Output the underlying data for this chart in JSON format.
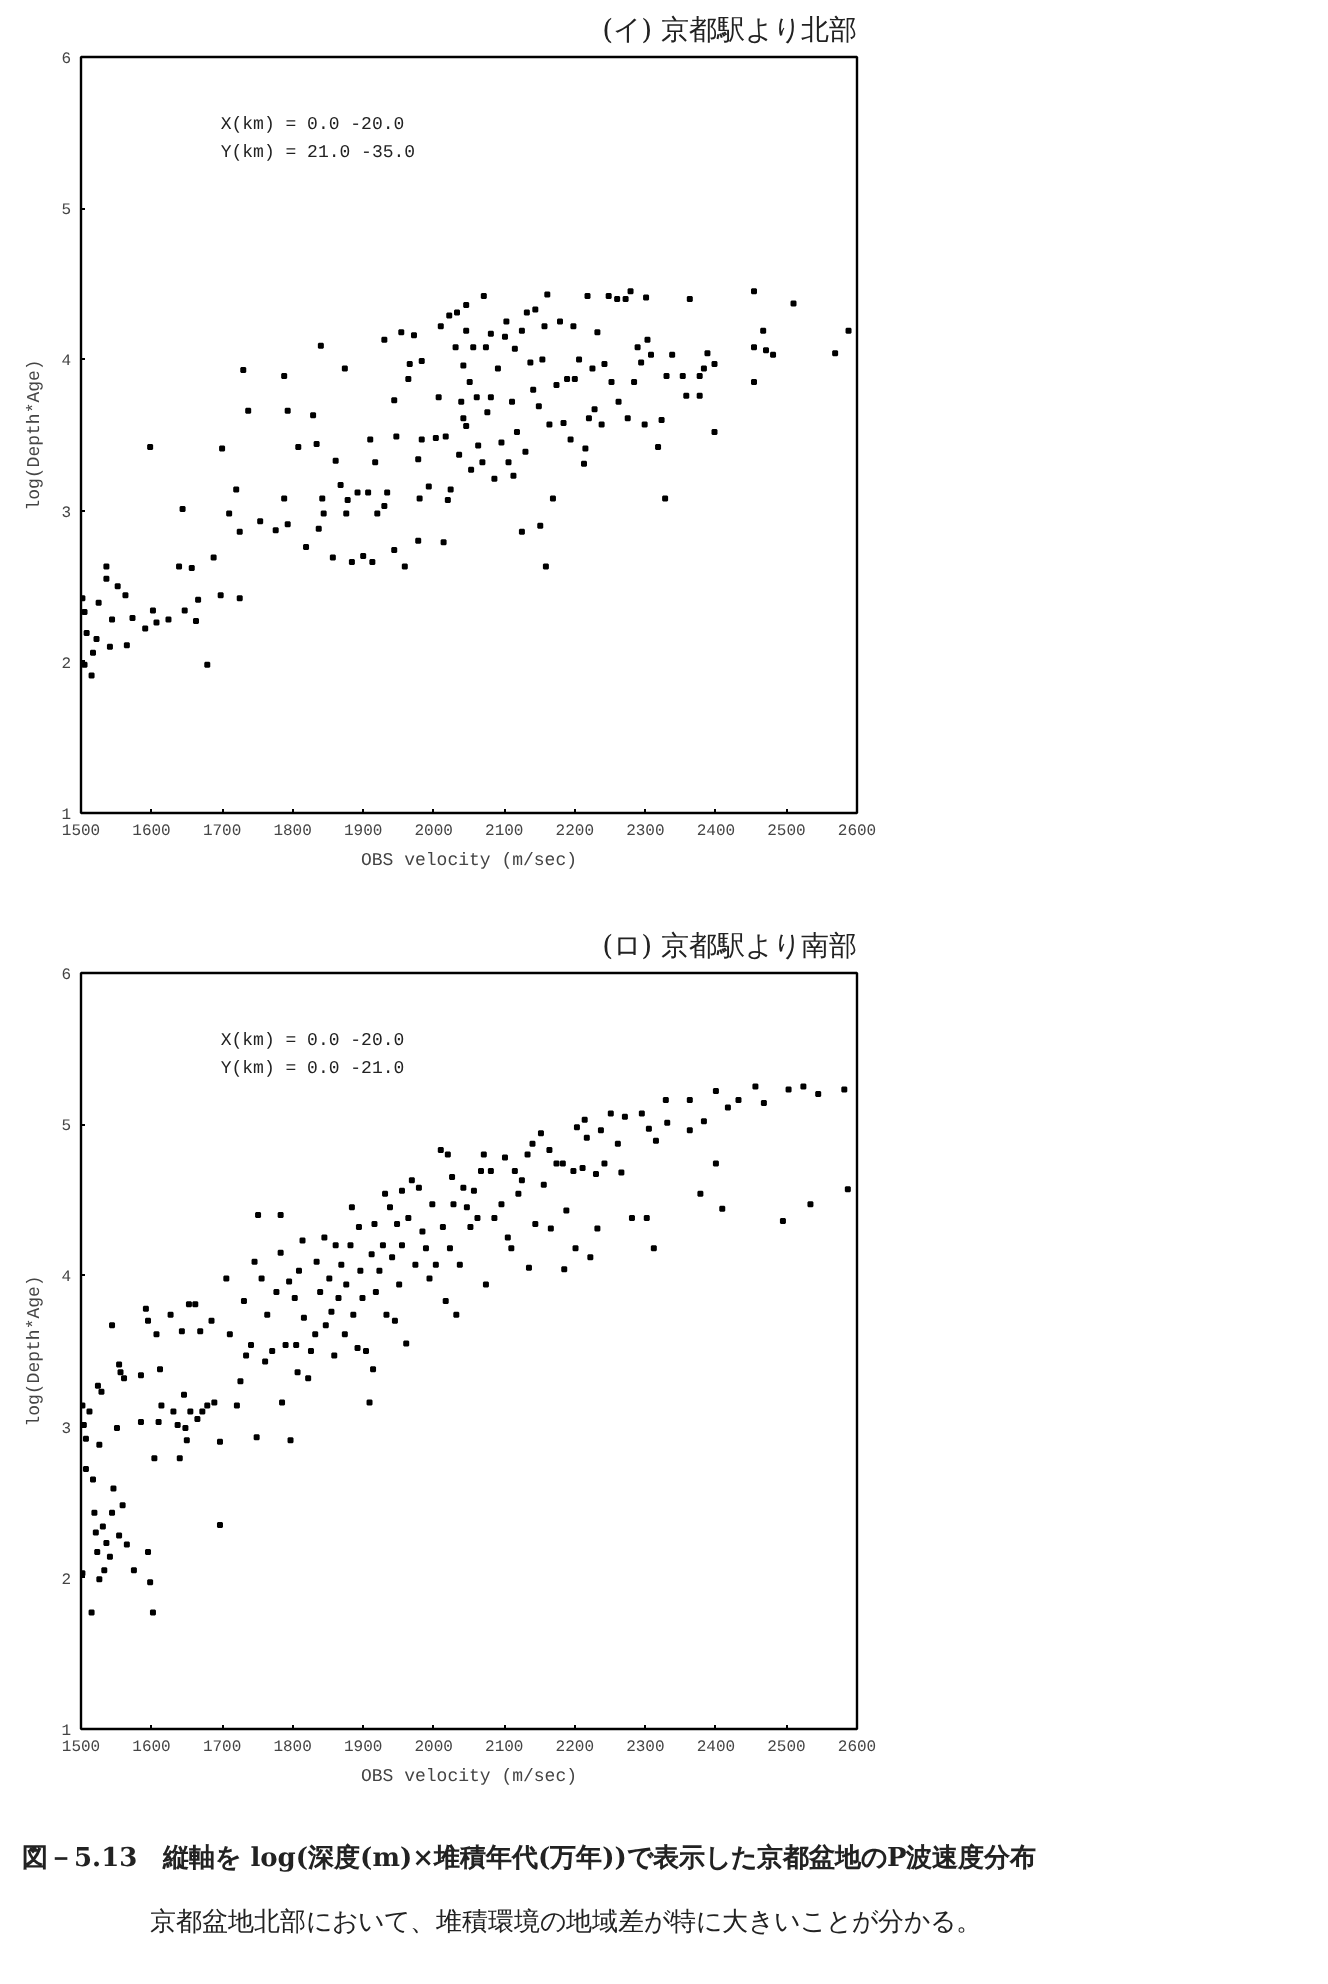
{
  "chart_data": [
    {
      "type": "scatter",
      "subtitle": "(イ) 京都駅より北部",
      "xlabel": "OBS velocity (m/sec)",
      "ylabel": "log(Depth*Age)",
      "annotations": [
        "X(km) = 0.0   -20.0",
        "Y(km) = 21.0  -35.0"
      ],
      "xlim": [
        1500,
        2600
      ],
      "ylim": [
        1,
        6
      ],
      "xticks": [
        1500,
        1600,
        1700,
        1800,
        1900,
        2000,
        2100,
        2200,
        2300,
        2400,
        2500,
        2600
      ],
      "yticks": [
        1,
        2,
        3,
        4,
        5,
        6
      ],
      "marker": "square",
      "color": "#000000",
      "x": [
        1502,
        1505,
        1508,
        1505,
        1515,
        1517,
        1522,
        1525,
        1536,
        1536,
        1541,
        1544,
        1552,
        1563,
        1565,
        1573,
        1591,
        1602,
        1607,
        1624,
        1639,
        1647,
        1644,
        1598,
        1657,
        1666,
        1663,
        1679,
        1688,
        1698,
        1700,
        1710,
        1720,
        1725,
        1725,
        1730,
        1737,
        1754,
        1776,
        1788,
        1788,
        1793,
        1793,
        1808,
        1819,
        1829,
        1834,
        1837,
        1840,
        1842,
        1844,
        1857,
        1861,
        1868,
        1874,
        1876,
        1878,
        1884,
        1892,
        1900,
        1907,
        1910,
        1913,
        1917,
        1920,
        1930,
        1930,
        1934,
        1944,
        1944,
        1947,
        1954,
        1959,
        1964,
        1966,
        1972,
        1978,
        1978,
        1980,
        1983,
        1983,
        1993,
        2003,
        2010,
        2007,
        2014,
        2017,
        2020,
        2022,
        2024,
        2031,
        2033,
        2036,
        2039,
        2042,
        2042,
        2046,
        2046,
        2046,
        2051,
        2053,
        2056,
        2061,
        2063,
        2069,
        2071,
        2074,
        2076,
        2081,
        2081,
        2086,
        2091,
        2096,
        2101,
        2103,
        2106,
        2111,
        2113,
        2115,
        2118,
        2125,
        2125,
        2130,
        2132,
        2137,
        2141,
        2144,
        2149,
        2151,
        2154,
        2157,
        2159,
        2161,
        2164,
        2169,
        2174,
        2179,
        2184,
        2189,
        2194,
        2198,
        2200,
        2206,
        2213,
        2215,
        2218,
        2220,
        2225,
        2228,
        2232,
        2238,
        2242,
        2248,
        2252,
        2260,
        2262,
        2272,
        2275,
        2279,
        2284,
        2289,
        2294,
        2299,
        2301,
        2303,
        2308,
        2318,
        2323,
        2328,
        2330,
        2338,
        2353,
        2358,
        2363,
        2377,
        2377,
        2383,
        2388,
        2398,
        2398,
        2454,
        2454,
        2454,
        2467,
        2471,
        2481,
        2510,
        2569,
        2588
      ],
      "values": [
        2.42,
        2.33,
        2.19,
        1.98,
        1.91,
        2.06,
        2.15,
        2.39,
        2.63,
        2.55,
        2.1,
        2.28,
        2.5,
        2.44,
        2.11,
        2.29,
        2.22,
        2.34,
        2.26,
        2.28,
        2.63,
        2.34,
        3.01,
        3.42,
        2.62,
        2.41,
        2.27,
        1.98,
        2.69,
        2.44,
        3.41,
        2.98,
        3.14,
        2.86,
        2.42,
        3.93,
        3.66,
        2.93,
        2.87,
        3.08,
        3.89,
        3.66,
        2.91,
        3.42,
        2.76,
        3.63,
        3.44,
        2.88,
        4.09,
        3.08,
        2.98,
        2.69,
        3.33,
        3.17,
        3.94,
        2.98,
        3.07,
        2.66,
        3.12,
        2.7,
        3.12,
        3.47,
        2.66,
        3.32,
        2.98,
        4.13,
        3.03,
        3.12,
        3.73,
        2.74,
        3.49,
        4.18,
        2.63,
        3.87,
        3.97,
        4.16,
        3.34,
        2.8,
        3.08,
        3.99,
        3.47,
        3.16,
        3.48,
        4.22,
        3.75,
        2.79,
        3.49,
        3.07,
        4.29,
        3.14,
        4.08,
        4.31,
        3.37,
        3.72,
        3.96,
        3.61,
        4.36,
        4.19,
        3.56,
        3.85,
        3.27,
        4.08,
        3.75,
        3.43,
        3.32,
        4.42,
        4.08,
        3.65,
        4.17,
        3.75,
        3.21,
        3.94,
        3.45,
        4.15,
        4.25,
        3.32,
        3.72,
        3.23,
        4.07,
        3.52,
        4.19,
        2.86,
        3.39,
        4.31,
        3.98,
        3.8,
        4.33,
        3.69,
        2.9,
        4.0,
        4.22,
        2.63,
        4.43,
        3.57,
        3.08,
        3.83,
        4.25,
        3.58,
        3.87,
        3.47,
        4.22,
        3.87,
        4.0,
        3.31,
        3.41,
        4.42,
        3.61,
        3.94,
        3.67,
        4.18,
        3.57,
        3.97,
        4.42,
        3.85,
        4.4,
        3.72,
        4.4,
        3.61,
        4.45,
        3.85,
        4.08,
        3.98,
        3.57,
        4.41,
        4.13,
        4.03,
        3.42,
        3.6,
        3.08,
        3.89,
        4.03,
        3.89,
        3.76,
        4.4,
        3.76,
        3.89,
        3.94,
        4.04,
        3.52,
        3.97,
        4.45,
        4.08,
        3.85,
        4.19,
        4.06,
        4.03,
        4.37,
        4.04,
        4.19
      ]
    },
    {
      "type": "scatter",
      "title": "図－5.13　縦軸を log(深度(m)×堆積年代(万年))で表示した京都盆地のP波速度分布",
      "subtitle": "(ロ) 京都駅より南部",
      "xlabel": "OBS velocity (m/sec)",
      "ylabel": "log(Depth*Age)",
      "annotations": [
        "X(km) = 0.0   -20.0",
        "Y(km) = 0.0   -21.0",
        "京都盆地北部において、堆積環境の地域差が特に大きいことが分かる。"
      ],
      "xlim": [
        1500,
        2600
      ],
      "ylim": [
        1,
        6
      ],
      "xticks": [
        1500,
        1600,
        1700,
        1800,
        1900,
        2000,
        2100,
        2200,
        2300,
        2400,
        2500,
        2600
      ],
      "yticks": [
        1,
        2,
        3,
        4,
        5,
        6
      ],
      "marker": "square",
      "color": "#000000",
      "x": [
        1502,
        1504,
        1507,
        1512,
        1507,
        1502,
        1517,
        1519,
        1521,
        1523,
        1526,
        1515,
        1524,
        1529,
        1526,
        1531,
        1536,
        1533,
        1541,
        1544,
        1546,
        1544,
        1551,
        1554,
        1556,
        1554,
        1559,
        1561,
        1565,
        1575,
        1585,
        1585,
        1592,
        1595,
        1595,
        1598,
        1602,
        1604,
        1607,
        1610,
        1612,
        1614,
        1627,
        1631,
        1637,
        1640,
        1643,
        1646,
        1648,
        1650,
        1653,
        1655,
        1662,
        1665,
        1669,
        1672,
        1679,
        1685,
        1689,
        1697,
        1697,
        1706,
        1711,
        1721,
        1726,
        1731,
        1734,
        1741,
        1746,
        1749,
        1751,
        1756,
        1761,
        1764,
        1771,
        1777,
        1783,
        1783,
        1785,
        1790,
        1795,
        1797,
        1803,
        1805,
        1807,
        1809,
        1814,
        1816,
        1822,
        1826,
        1832,
        1834,
        1839,
        1845,
        1847,
        1852,
        1855,
        1859,
        1861,
        1865,
        1869,
        1874,
        1876,
        1882,
        1884,
        1886,
        1892,
        1894,
        1896,
        1899,
        1904,
        1909,
        1912,
        1914,
        1916,
        1918,
        1923,
        1928,
        1931,
        1933,
        1938,
        1941,
        1945,
        1948,
        1951,
        1955,
        1955,
        1961,
        1964,
        1969,
        1974,
        1979,
        1984,
        1989,
        1994,
        1998,
        2003,
        2010,
        2013,
        2017,
        2020,
        2023,
        2026,
        2028,
        2032,
        2037,
        2042,
        2047,
        2052,
        2057,
        2062,
        2067,
        2071,
        2074,
        2081,
        2086,
        2096,
        2101,
        2105,
        2110,
        2115,
        2120,
        2125,
        2133,
        2135,
        2140,
        2144,
        2152,
        2156,
        2164,
        2166,
        2174,
        2183,
        2185,
        2188,
        2198,
        2201,
        2203,
        2211,
        2214,
        2217,
        2222,
        2230,
        2232,
        2237,
        2242,
        2251,
        2261,
        2266,
        2271,
        2281,
        2295,
        2302,
        2305,
        2312,
        2315,
        2329,
        2331,
        2363,
        2363,
        2378,
        2383,
        2400,
        2400,
        2409,
        2417,
        2432,
        2456,
        2468,
        2495,
        2503,
        2524,
        2534,
        2545,
        2582,
        2587
      ],
      "values": [
        3.14,
        3.01,
        2.92,
        3.1,
        2.72,
        2.03,
        2.65,
        2.43,
        2.3,
        2.17,
        1.99,
        1.77,
        3.27,
        3.23,
        2.88,
        2.34,
        2.23,
        2.05,
        2.14,
        3.67,
        2.59,
        2.43,
        2.99,
        3.41,
        3.36,
        2.28,
        2.48,
        3.32,
        2.22,
        2.05,
        3.34,
        3.03,
        3.78,
        3.7,
        2.17,
        1.97,
        1.77,
        2.79,
        3.61,
        3.03,
        3.38,
        3.14,
        3.74,
        3.1,
        3.01,
        2.79,
        3.63,
        3.21,
        2.99,
        2.91,
        3.81,
        3.1,
        3.81,
        3.05,
        3.63,
        3.1,
        3.14,
        3.7,
        3.16,
        2.9,
        2.35,
        3.98,
        3.61,
        3.14,
        3.3,
        3.83,
        3.47,
        3.54,
        4.09,
        2.93,
        4.4,
        3.98,
        3.43,
        3.74,
        3.5,
        3.89,
        4.4,
        4.15,
        3.16,
        3.54,
        3.96,
        2.91,
        3.85,
        3.54,
        3.36,
        4.03,
        4.23,
        3.72,
        3.32,
        3.5,
        3.61,
        4.09,
        3.89,
        4.25,
        3.67,
        3.98,
        3.76,
        3.47,
        4.2,
        3.85,
        4.07,
        3.61,
        3.94,
        4.2,
        4.45,
        3.74,
        3.52,
        4.32,
        4.03,
        3.85,
        3.5,
        3.16,
        4.14,
        3.38,
        4.34,
        3.89,
        4.03,
        4.2,
        4.54,
        3.74,
        4.45,
        4.12,
        3.7,
        4.34,
        3.94,
        4.2,
        4.56,
        3.55,
        4.38,
        4.63,
        4.07,
        4.58,
        4.29,
        4.18,
        3.98,
        4.47,
        4.07,
        4.83,
        4.32,
        3.83,
        4.8,
        4.18,
        4.65,
        4.47,
        3.74,
        4.07,
        4.58,
        4.45,
        4.32,
        4.56,
        4.38,
        4.69,
        4.8,
        3.94,
        4.69,
        4.38,
        4.47,
        4.78,
        4.25,
        4.18,
        4.69,
        4.54,
        4.63,
        4.8,
        4.05,
        4.87,
        4.34,
        4.94,
        4.6,
        4.83,
        4.31,
        4.74,
        4.74,
        4.04,
        4.43,
        4.69,
        4.18,
        4.98,
        4.71,
        5.03,
        4.91,
        4.12,
        4.67,
        4.31,
        4.96,
        4.74,
        5.07,
        4.87,
        4.68,
        5.05,
        4.38,
        5.07,
        4.38,
        4.97,
        4.18,
        4.89,
        5.16,
        5.01,
        5.16,
        4.96,
        4.54,
        5.02,
        5.22,
        4.74,
        4.44,
        5.11,
        5.16,
        5.25,
        5.14,
        4.36,
        5.23,
        5.25,
        4.47,
        5.2,
        5.23,
        4.57
      ]
    }
  ]
}
